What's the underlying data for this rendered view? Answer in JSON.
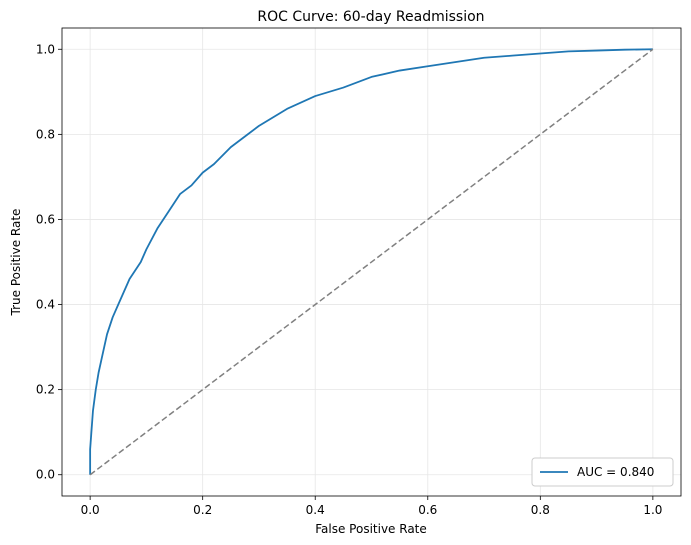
{
  "chart_data": {
    "type": "line",
    "title": "ROC Curve: 60-day Readmission",
    "xlabel": "False Positive Rate",
    "ylabel": "True Positive Rate",
    "xlim": [
      -0.05,
      1.05
    ],
    "ylim": [
      -0.05,
      1.05
    ],
    "xticks": [
      0.0,
      0.2,
      0.4,
      0.6,
      0.8,
      1.0
    ],
    "yticks": [
      0.0,
      0.2,
      0.4,
      0.6,
      0.8,
      1.0
    ],
    "xtick_labels": [
      "0.0",
      "0.2",
      "0.4",
      "0.6",
      "0.8",
      "1.0"
    ],
    "ytick_labels": [
      "0.0",
      "0.2",
      "0.4",
      "0.6",
      "0.8",
      "1.0"
    ],
    "grid": true,
    "legend_position": "lower-right",
    "series": [
      {
        "name": "AUC = 0.840",
        "color": "#1f77b4",
        "style": "solid",
        "x": [
          0.0,
          0.0,
          0.005,
          0.01,
          0.015,
          0.02,
          0.025,
          0.03,
          0.04,
          0.05,
          0.06,
          0.07,
          0.08,
          0.09,
          0.1,
          0.12,
          0.14,
          0.16,
          0.18,
          0.2,
          0.22,
          0.25,
          0.28,
          0.3,
          0.35,
          0.4,
          0.45,
          0.5,
          0.55,
          0.6,
          0.65,
          0.7,
          0.75,
          0.8,
          0.85,
          0.9,
          0.95,
          1.0
        ],
        "y": [
          0.0,
          0.06,
          0.15,
          0.2,
          0.24,
          0.27,
          0.3,
          0.33,
          0.37,
          0.4,
          0.43,
          0.46,
          0.48,
          0.5,
          0.53,
          0.58,
          0.62,
          0.66,
          0.68,
          0.71,
          0.73,
          0.77,
          0.8,
          0.82,
          0.86,
          0.89,
          0.91,
          0.935,
          0.95,
          0.96,
          0.97,
          0.98,
          0.985,
          0.99,
          0.995,
          0.997,
          0.999,
          1.0
        ]
      },
      {
        "name": "",
        "color": "#808080",
        "style": "dashed",
        "x": [
          0.0,
          1.0
        ],
        "y": [
          0.0,
          1.0
        ]
      }
    ]
  }
}
